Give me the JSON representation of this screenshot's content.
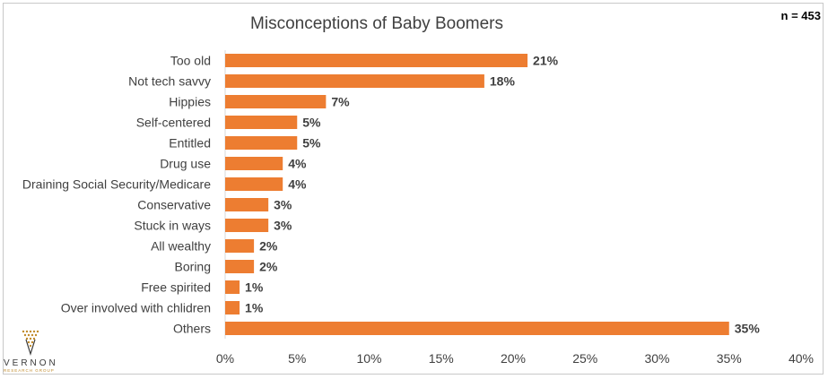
{
  "header": {
    "n_label": "n = 453"
  },
  "logo": {
    "name": "VERNON",
    "subtitle": "RESEARCH GROUP"
  },
  "colors": {
    "bar": "#ed7d31",
    "axis_line": "#d9d9d9",
    "text": "#404040"
  },
  "chart_data": {
    "type": "bar",
    "orientation": "horizontal",
    "title": "Misconceptions of Baby Boomers",
    "xlabel": "",
    "ylabel": "",
    "categories": [
      "Too old",
      "Not tech savvy",
      "Hippies",
      "Self-centered",
      "Entitled",
      "Drug use",
      "Draining Social Security/Medicare",
      "Conservative",
      "Stuck in ways",
      "All wealthy",
      "Boring",
      "Free spirited",
      "Over involved with chlidren",
      "Others"
    ],
    "values": [
      21,
      18,
      7,
      5,
      5,
      4,
      4,
      3,
      3,
      2,
      2,
      1,
      1,
      35
    ],
    "data_labels": [
      "21%",
      "18%",
      "7%",
      "5%",
      "5%",
      "4%",
      "4%",
      "3%",
      "3%",
      "2%",
      "2%",
      "1%",
      "1%",
      "35%"
    ],
    "xlim": [
      0,
      40
    ],
    "xticks": [
      0,
      5,
      10,
      15,
      20,
      25,
      30,
      35,
      40
    ],
    "xtick_labels": [
      "0%",
      "5%",
      "10%",
      "15%",
      "20%",
      "25%",
      "30%",
      "35%",
      "40%"
    ],
    "grid": false,
    "legend": "none"
  }
}
